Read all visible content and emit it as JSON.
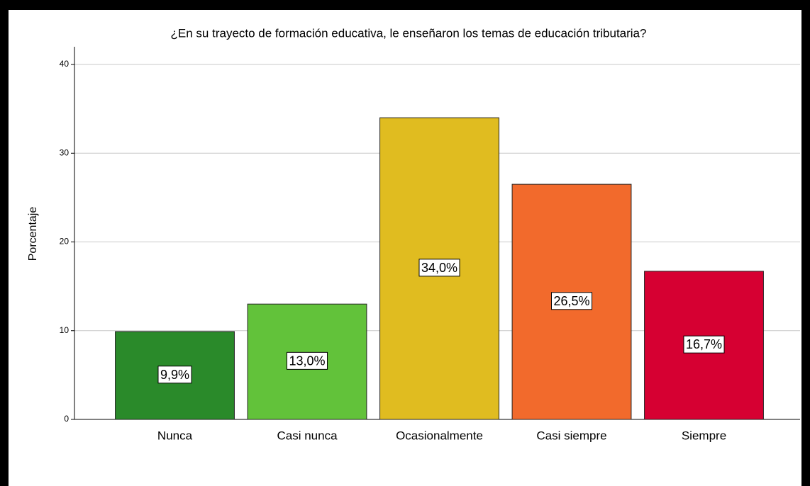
{
  "chart_data": {
    "type": "bar",
    "title": "¿En su trayecto de formación educativa, le enseñaron los temas de educación tributaria?",
    "y_label": "Porcentaje",
    "categories": [
      "Nunca",
      "Casi nunca",
      "Ocasionalmente",
      "Casi siempre",
      "Siempre"
    ],
    "values": [
      9.9,
      13.0,
      34.0,
      26.5,
      16.7
    ],
    "value_labels": [
      "9,9%",
      "13,0%",
      "34,0%",
      "26,5%",
      "16,7%"
    ],
    "colors": [
      "#2a8a2a",
      "#62c23a",
      "#e0bc20",
      "#f26a2c",
      "#d60032"
    ],
    "ylim": [
      0,
      42
    ],
    "yticks": [
      0,
      10,
      20,
      30,
      40
    ],
    "grid": true
  }
}
